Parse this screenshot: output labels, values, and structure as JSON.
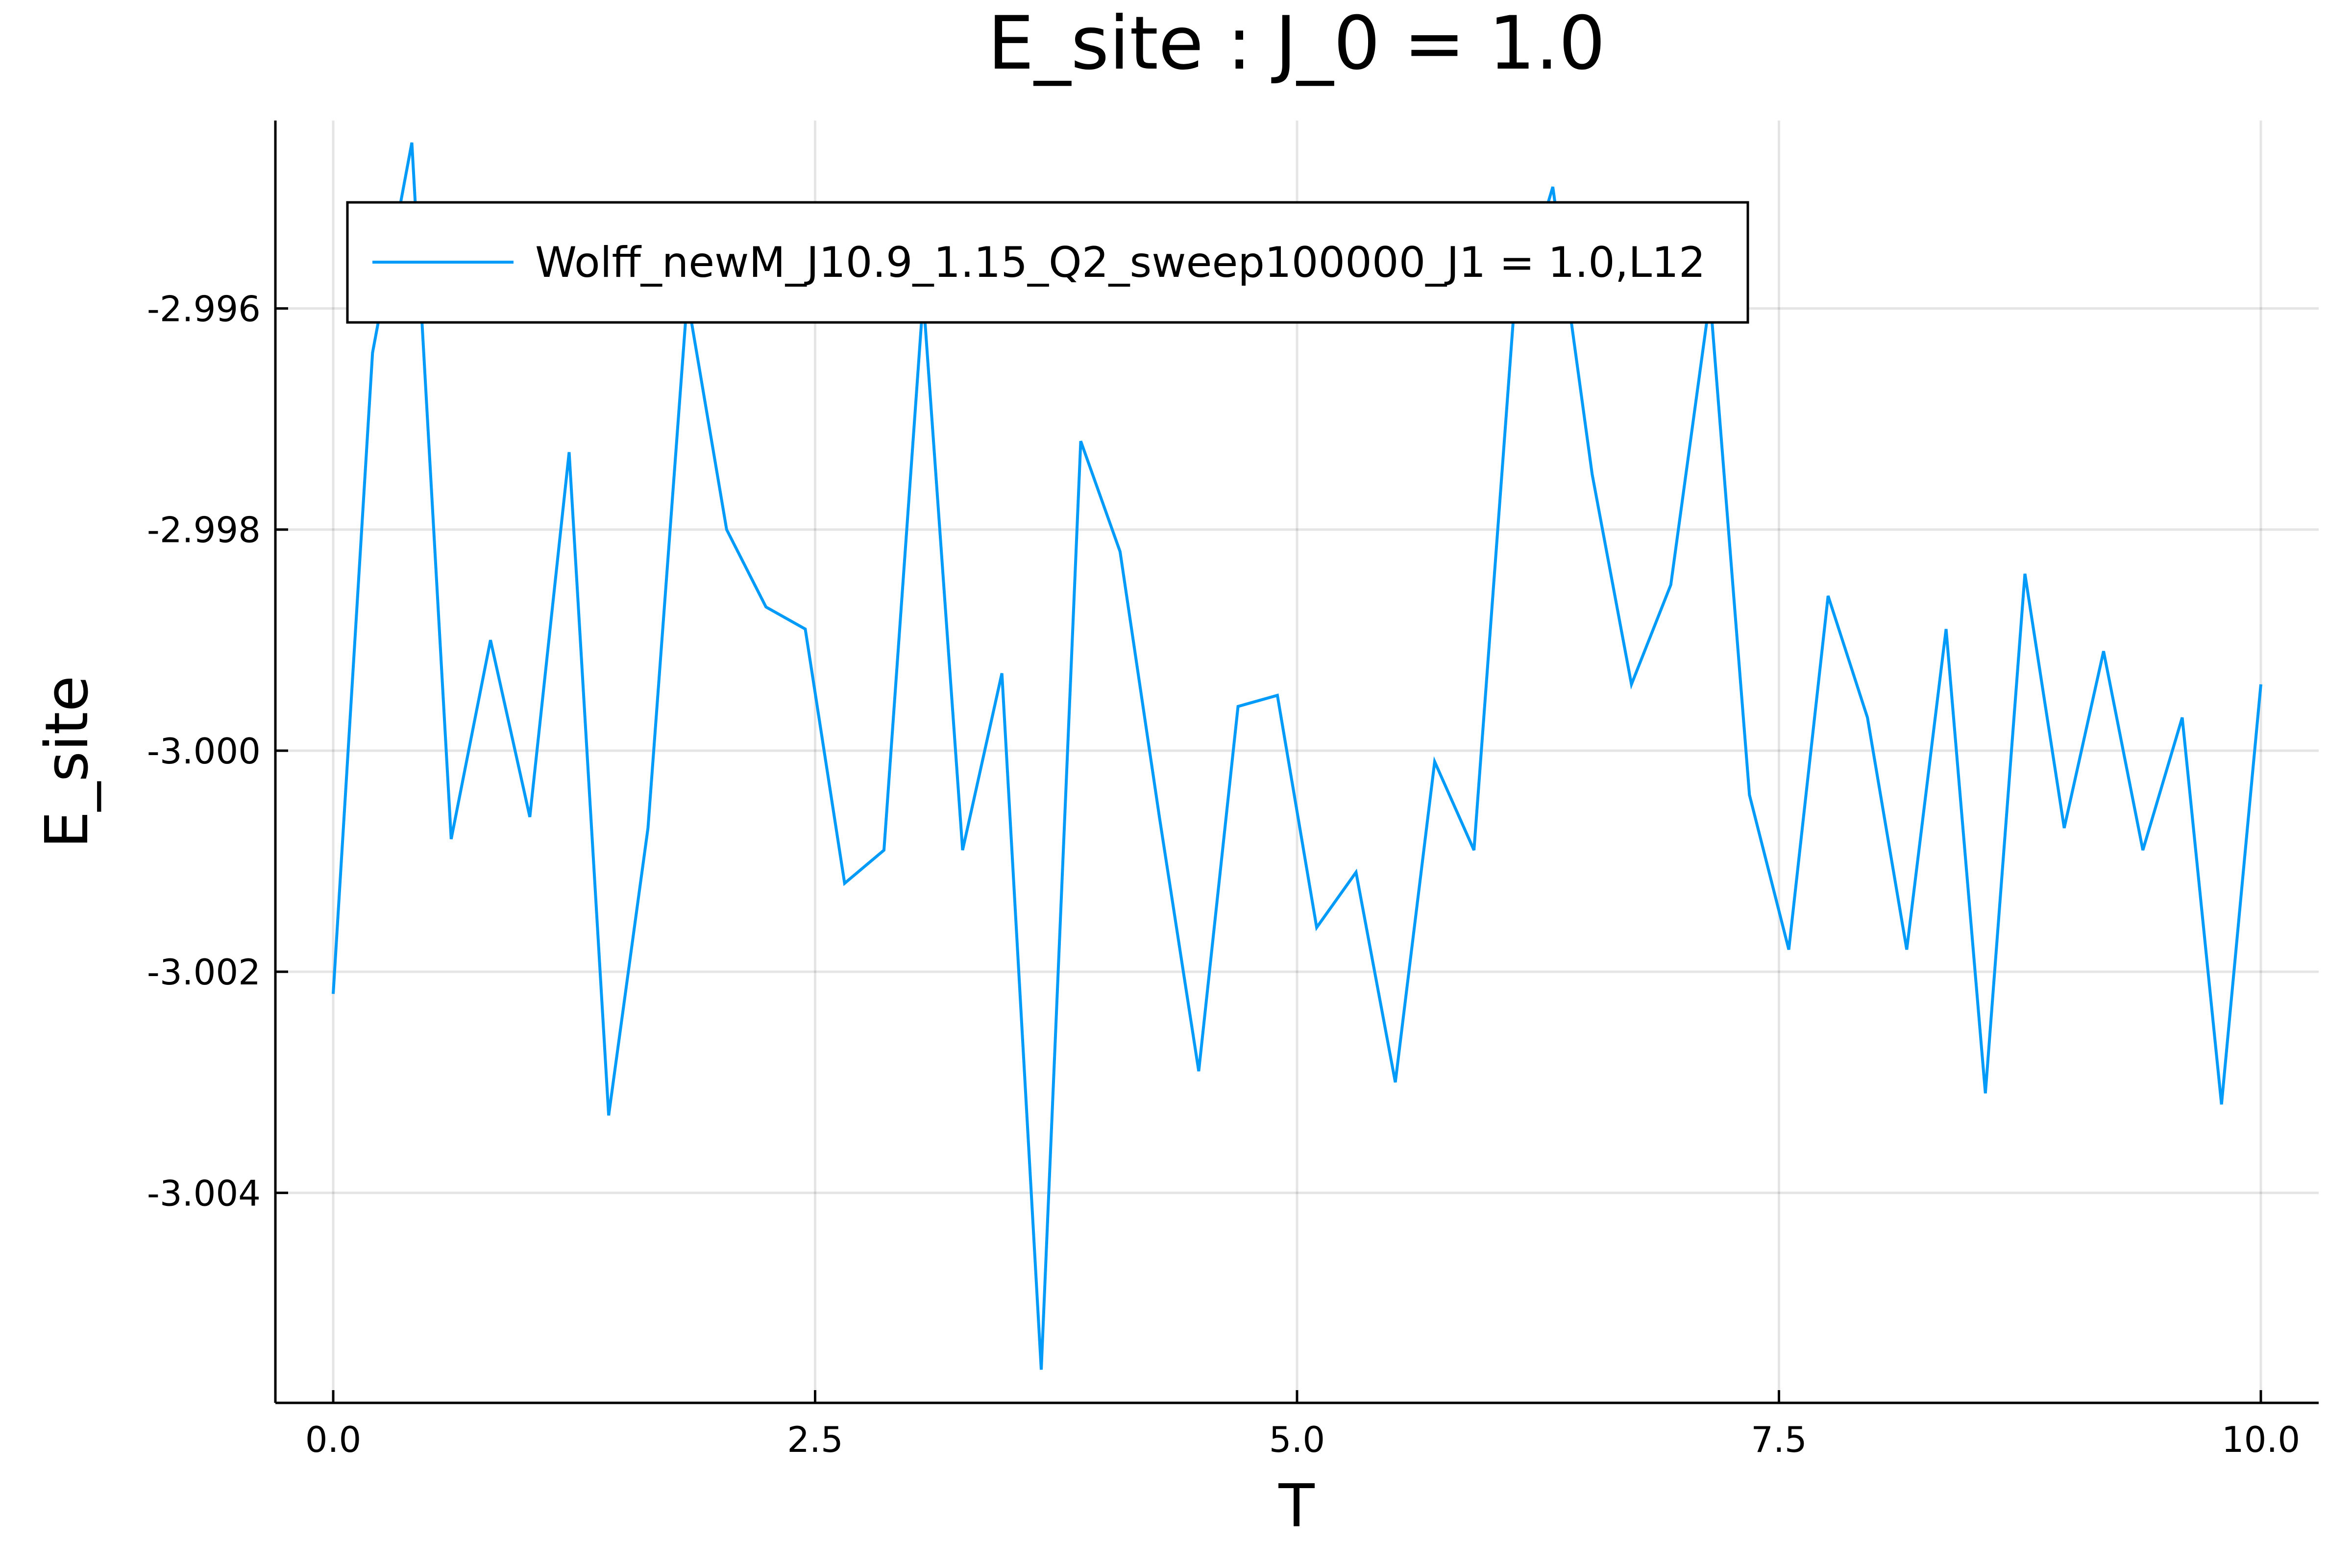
{
  "chart_data": {
    "type": "line",
    "title": "E_site : J_0 = 1.0",
    "xlabel": "T",
    "ylabel": "E_site",
    "xlim": [
      -0.3,
      10.3
    ],
    "ylim": [
      -3.0059,
      -2.9943
    ],
    "xticks": [
      0.0,
      2.5,
      5.0,
      7.5,
      10.0
    ],
    "xtick_labels": [
      "0.0",
      "2.5",
      "5.0",
      "7.5",
      "10.0"
    ],
    "yticks": [
      -3.004,
      -3.002,
      -3.0,
      -2.998,
      -2.996
    ],
    "ytick_labels": [
      "-3.004",
      "-3.002",
      "-3.000",
      "-2.998",
      "-2.996"
    ],
    "grid": true,
    "legend_position": "top",
    "series_color": "#009AF9",
    "series": [
      {
        "name": "Wolff_newM_J10.9_1.15_Q2_sweep100000_J1 = 1.0,L12",
        "x": [
          0.0,
          0.204,
          0.408,
          0.612,
          0.816,
          1.02,
          1.224,
          1.429,
          1.633,
          1.837,
          2.041,
          2.245,
          2.449,
          2.653,
          2.857,
          3.061,
          3.265,
          3.469,
          3.673,
          3.878,
          4.082,
          4.286,
          4.49,
          4.694,
          4.898,
          5.102,
          5.306,
          5.51,
          5.714,
          5.918,
          6.122,
          6.327,
          6.531,
          6.735,
          6.939,
          7.143,
          7.347,
          7.551,
          7.755,
          7.959,
          8.163,
          8.367,
          8.571,
          8.776,
          8.98,
          9.184,
          9.388,
          9.592,
          9.796,
          10.0
        ],
        "values": [
          -3.0022,
          -2.9964,
          -2.9945,
          -3.0008,
          -2.999,
          -3.0006,
          -2.9973,
          -3.0033,
          -3.0007,
          -2.9959,
          -2.998,
          -2.9987,
          -2.9989,
          -3.0012,
          -3.0009,
          -2.9959,
          -3.0009,
          -2.9993,
          -3.0056,
          -2.9972,
          -2.9982,
          -3.0006,
          -3.0029,
          -2.9996,
          -2.9995,
          -3.0016,
          -3.0011,
          -3.003,
          -3.0001,
          -3.0009,
          -2.9961,
          -2.9949,
          -2.9975,
          -2.9994,
          -2.9985,
          -2.9959,
          -3.0004,
          -3.0018,
          -2.9986,
          -2.9997,
          -3.0018,
          -2.9989,
          -3.0031,
          -2.9984,
          -3.0007,
          -2.9991,
          -3.0009,
          -2.9997,
          -3.0032,
          -2.9994
        ]
      }
    ]
  }
}
